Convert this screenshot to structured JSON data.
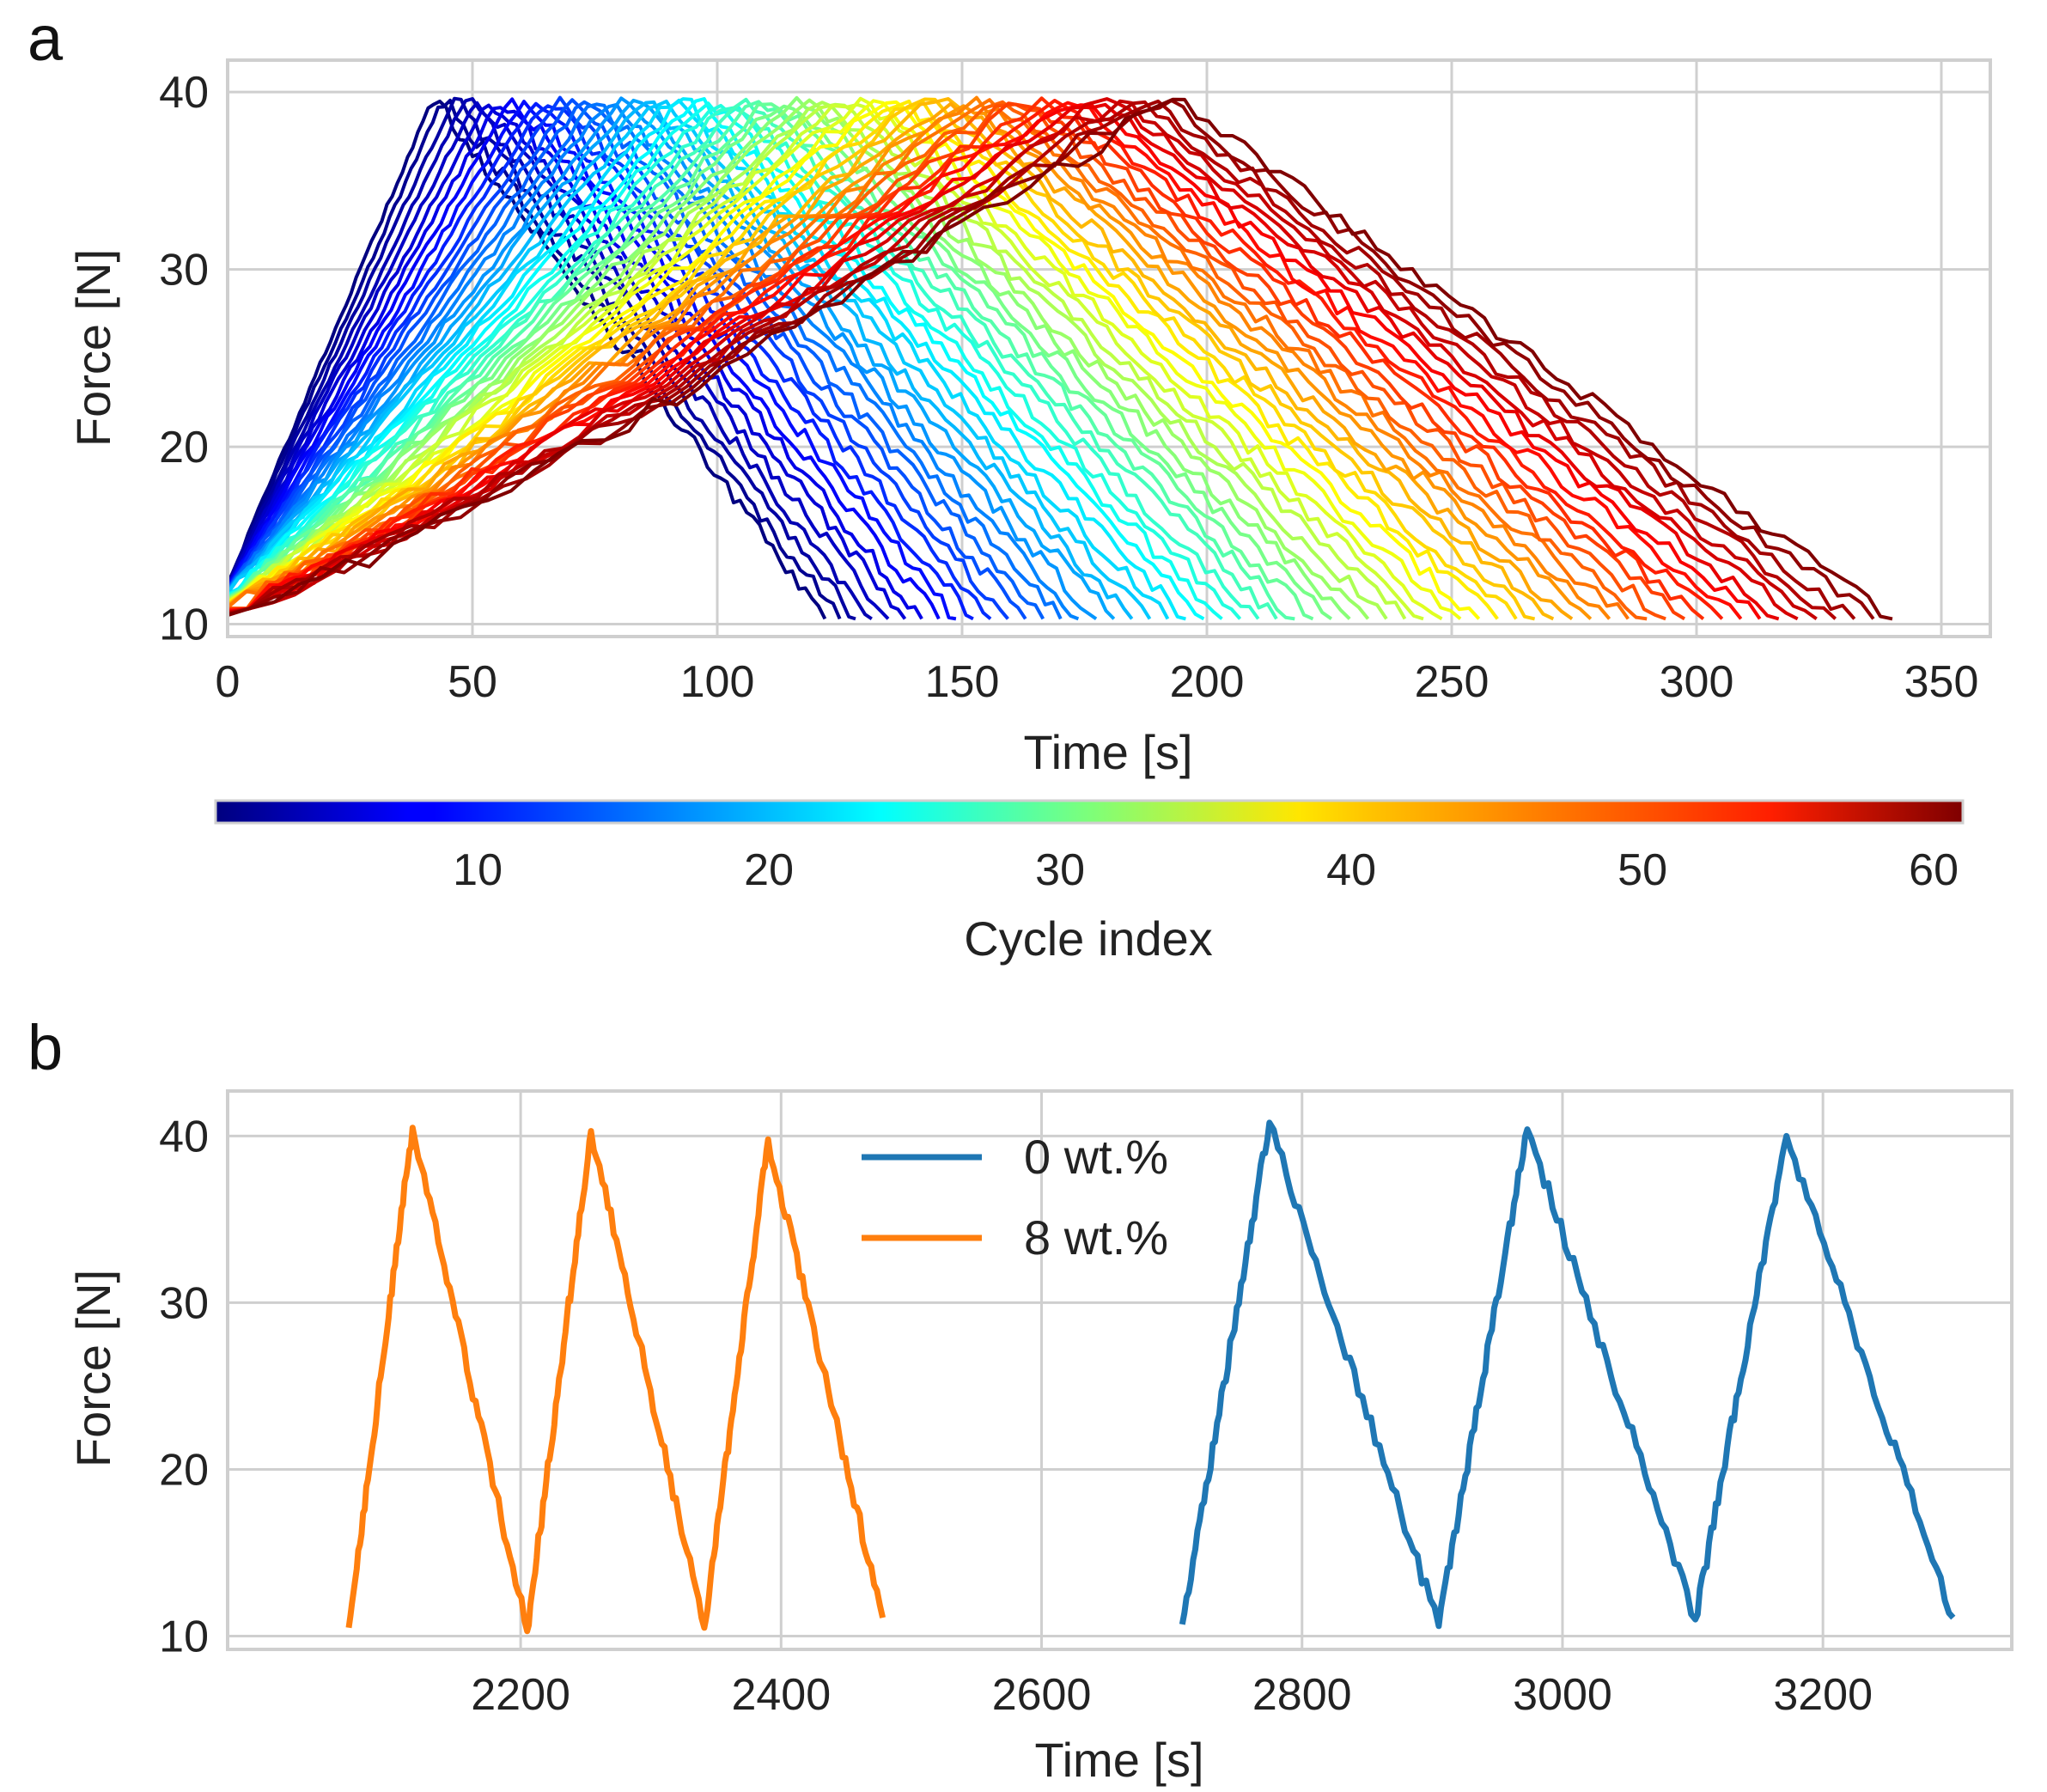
{
  "chart_data": [
    {
      "panel": "a",
      "type": "line",
      "xlabel": "Time [s]",
      "ylabel": "Force [N]",
      "xlim": [
        0,
        360
      ],
      "ylim": [
        9.3,
        41.8
      ],
      "xticks": [
        0,
        50,
        100,
        150,
        200,
        250,
        300,
        350
      ],
      "yticks": [
        10,
        20,
        30,
        40
      ],
      "grid": true,
      "series_description": "One force-time curve per loading cycle; cycle 1 peaks near 42 s and ends near 122 s, cycle 60 peaks near 193 s and ends near 340 s; load range approx 10-40 N",
      "cycles": {
        "count": 60,
        "t_peak_first": 42,
        "t_peak_last": 193,
        "t_end_first": 122,
        "t_end_last": 340,
        "f_min": 10.3,
        "f_max": 39.7
      },
      "colorbar": {
        "label": "Cycle index",
        "range": [
          1,
          61
        ],
        "ticks": [
          10,
          20,
          30,
          40,
          50,
          60
        ],
        "colormap": "jet"
      }
    },
    {
      "panel": "b",
      "type": "line",
      "xlabel": "Time [s]",
      "ylabel": "Force [N]",
      "xlim": [
        1975,
        3345
      ],
      "ylim": [
        9.2,
        42.7
      ],
      "xticks": [
        2200,
        2400,
        2600,
        2800,
        3000,
        3200
      ],
      "yticks": [
        10,
        20,
        30,
        40
      ],
      "grid": true,
      "legend_position": "top-center",
      "series": [
        {
          "name": "0 wt.%",
          "color": "#1f77b4",
          "points": [
            [
              2708,
              10.7
            ],
            [
              2775,
              40.8
            ],
            [
              2905,
              10.6
            ],
            [
              2973,
              40.4
            ],
            [
              3102,
              11.0
            ],
            [
              3172,
              40.0
            ],
            [
              3300,
              11.1
            ]
          ]
        },
        {
          "name": "8 wt.%",
          "color": "#ff7f0e",
          "points": [
            [
              2068,
              10.5
            ],
            [
              2117,
              40.5
            ],
            [
              2205,
              10.3
            ],
            [
              2254,
              40.3
            ],
            [
              2341,
              10.5
            ],
            [
              2390,
              39.8
            ],
            [
              2478,
              11.1
            ]
          ]
        }
      ]
    }
  ]
}
